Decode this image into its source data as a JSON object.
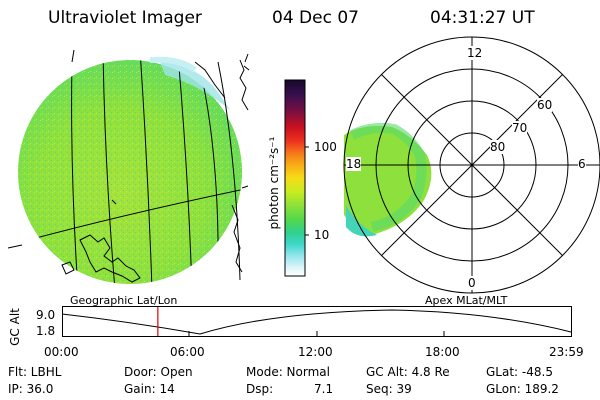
{
  "header": {
    "title": "Ultraviolet Imager",
    "date": "04 Dec 07",
    "time": "04:31:27 UT"
  },
  "left_panel": {
    "label": "Geographic Lat/Lon"
  },
  "right_panel": {
    "label": "Apex MLat/MLT",
    "mlt_labels": {
      "top": "12",
      "left": "18",
      "right": "6",
      "bottom": "0"
    },
    "lat_labels": [
      "60",
      "70",
      "80"
    ]
  },
  "colorbar": {
    "unit_label": "photon cm⁻²s⁻¹",
    "tick_labels": [
      "100",
      "10"
    ],
    "colors": [
      "#1a0a2e",
      "#2a0f4a",
      "#4a1256",
      "#7a0f40",
      "#a0102a",
      "#c8101a",
      "#e8201a",
      "#f03d20",
      "#f46a20",
      "#f89a18",
      "#fcc010",
      "#f0e020",
      "#c8ec20",
      "#a0e830",
      "#78e03c",
      "#50d848",
      "#38d470",
      "#30d0a0",
      "#40d4c4",
      "#60dce0",
      "#a8eaf0",
      "#d8f4f8",
      "#ffffff"
    ]
  },
  "altitude_plot": {
    "axis_label": "GC Alt",
    "y_ticks": [
      "9.0",
      "1.8"
    ],
    "x_ticks": [
      "00:00",
      "06:00",
      "12:00",
      "18:00",
      "23:59"
    ],
    "marker_time": "04:31",
    "marker_color": "#e00000"
  },
  "info": {
    "flt": "Flt: LBHL",
    "ip": "IP: 36.0",
    "door": "Door: Open",
    "gain": "Gain: 14",
    "mode": "Mode: Normal",
    "dsp": "Dsp:",
    "dsp_value": "7.1",
    "gc_alt": "GC Alt: 4.8 Re",
    "seq": "Seq: 39",
    "glat": "GLat: -48.5",
    "glon": "GLon: 189.2"
  }
}
